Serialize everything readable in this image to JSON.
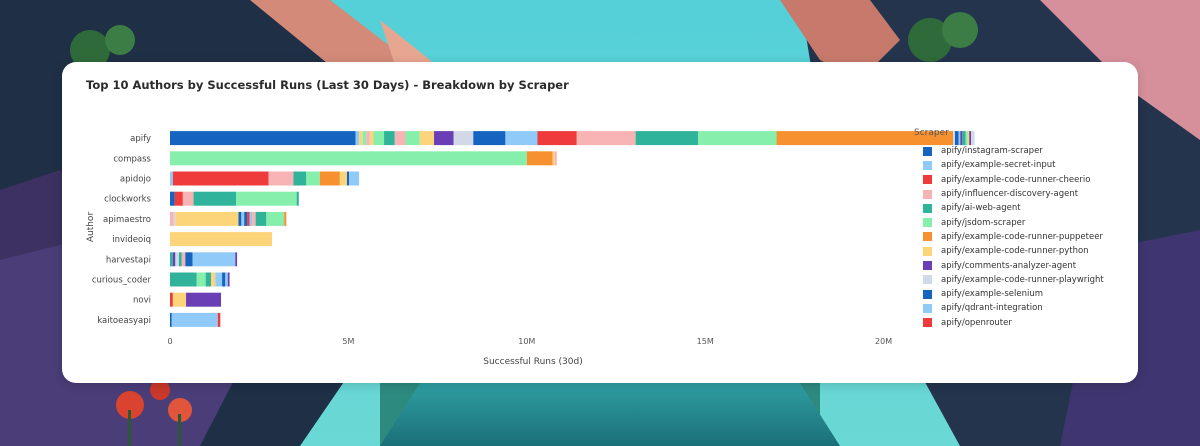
{
  "chart_data": {
    "type": "bar",
    "orientation": "horizontal",
    "stacked": true,
    "title": "Top 10 Authors by Successful Runs (Last 30 Days) - Breakdown by Scraper",
    "xlabel": "Successful Runs (30d)",
    "ylabel": "Author",
    "xlim": [
      0,
      25000000
    ],
    "x_ticks": [
      {
        "value": 0,
        "label": "0"
      },
      {
        "value": 5000000,
        "label": "5M"
      },
      {
        "value": 10000000,
        "label": "10M"
      },
      {
        "value": 15000000,
        "label": "15M"
      },
      {
        "value": 20000000,
        "label": "20M"
      }
    ],
    "grid": false,
    "legend_title": "Scraper",
    "legend_position": "right",
    "legend": [
      {
        "name": "apify/instagram-scraper",
        "color": "#1565c0"
      },
      {
        "name": "apify/example-secret-input",
        "color": "#90caf9"
      },
      {
        "name": "apify/example-code-runner-cheerio",
        "color": "#ef3b3b"
      },
      {
        "name": "apify/influencer-discovery-agent",
        "color": "#f8b4b4"
      },
      {
        "name": "apify/ai-web-agent",
        "color": "#2fb39a"
      },
      {
        "name": "apify/jsdom-scraper",
        "color": "#86efac"
      },
      {
        "name": "apify/example-code-runner-puppeteer",
        "color": "#f7902f"
      },
      {
        "name": "apify/example-code-runner-python",
        "color": "#fcd47a"
      },
      {
        "name": "apify/comments-analyzer-agent",
        "color": "#6a3fb5"
      },
      {
        "name": "apify/example-code-runner-playwright",
        "color": "#d3d8e8"
      },
      {
        "name": "apify/example-selenium",
        "color": "#1565c0"
      },
      {
        "name": "apify/qdrant-integration",
        "color": "#90caf9"
      },
      {
        "name": "apify/openrouter",
        "color": "#ef3b3b"
      }
    ],
    "categories": [
      "apify",
      "compass",
      "apidojo",
      "clockworks",
      "apimaestro",
      "invideoiq",
      "harvestapi",
      "curious_coder",
      "novi",
      "kaitoeasyapi"
    ],
    "bars": [
      {
        "author": "apify",
        "segments": [
          {
            "color": "#1565c0",
            "value": 5200000
          },
          {
            "color": "#90caf9",
            "value": 100000
          },
          {
            "color": "#fcd47a",
            "value": 100000
          },
          {
            "color": "#86efac",
            "value": 100000
          },
          {
            "color": "#f8b4b4",
            "value": 100000
          },
          {
            "color": "#fcd47a",
            "value": 100000
          },
          {
            "color": "#86efac",
            "value": 300000
          },
          {
            "color": "#2fb39a",
            "value": 300000
          },
          {
            "color": "#f8b4b4",
            "value": 300000
          },
          {
            "color": "#86efac",
            "value": 400000
          },
          {
            "color": "#fcd47a",
            "value": 400000
          },
          {
            "color": "#6a3fb5",
            "value": 550000
          },
          {
            "color": "#d3d8e8",
            "value": 550000
          },
          {
            "color": "#1565c0",
            "value": 900000
          },
          {
            "color": "#90caf9",
            "value": 900000
          },
          {
            "color": "#ef3b3b",
            "value": 1100000
          },
          {
            "color": "#f8b4b4",
            "value": 1650000
          },
          {
            "color": "#2fb39a",
            "value": 1750000
          },
          {
            "color": "#86efac",
            "value": 2200000
          },
          {
            "color": "#f7902f",
            "value": 4950000
          },
          {
            "color": "#d3d8e8",
            "value": 50000
          },
          {
            "color": "#1565c0",
            "value": 100000
          },
          {
            "color": "#90caf9",
            "value": 50000
          },
          {
            "color": "#6a3fb5",
            "value": 50000
          },
          {
            "color": "#2fb39a",
            "value": 100000
          },
          {
            "color": "#86efac",
            "value": 50000
          },
          {
            "color": "#fcd47a",
            "value": 50000
          },
          {
            "color": "#6a3fb5",
            "value": 50000
          },
          {
            "color": "#d3d8e8",
            "value": 100000
          }
        ]
      },
      {
        "author": "compass",
        "segments": [
          {
            "color": "#86efac",
            "value": 10000000
          },
          {
            "color": "#f7902f",
            "value": 720000
          },
          {
            "color": "#fcd47a",
            "value": 60000
          },
          {
            "color": "#f8b4b4",
            "value": 60000
          }
        ]
      },
      {
        "author": "apidojo",
        "segments": [
          {
            "color": "#90caf9",
            "value": 80000
          },
          {
            "color": "#ef3b3b",
            "value": 2680000
          },
          {
            "color": "#f8b4b4",
            "value": 700000
          },
          {
            "color": "#2fb39a",
            "value": 360000
          },
          {
            "color": "#86efac",
            "value": 380000
          },
          {
            "color": "#f7902f",
            "value": 560000
          },
          {
            "color": "#fcd47a",
            "value": 200000
          },
          {
            "color": "#1565c0",
            "value": 60000
          },
          {
            "color": "#90caf9",
            "value": 280000
          }
        ]
      },
      {
        "author": "clockworks",
        "segments": [
          {
            "color": "#1565c0",
            "value": 130000
          },
          {
            "color": "#ef3b3b",
            "value": 230000
          },
          {
            "color": "#f8b4b4",
            "value": 300000
          },
          {
            "color": "#2fb39a",
            "value": 1190000
          },
          {
            "color": "#86efac",
            "value": 1700000
          },
          {
            "color": "#2fb39a",
            "value": 60000
          }
        ]
      },
      {
        "author": "apimaestro",
        "segments": [
          {
            "color": "#f8b4b4",
            "value": 100000
          },
          {
            "color": "#d3d8e8",
            "value": 50000
          },
          {
            "color": "#fcd47a",
            "value": 1770000
          },
          {
            "color": "#1565c0",
            "value": 80000
          },
          {
            "color": "#90caf9",
            "value": 80000
          },
          {
            "color": "#1565c0",
            "value": 80000
          },
          {
            "color": "#ef3b3b",
            "value": 70000
          },
          {
            "color": "#90caf9",
            "value": 70000
          },
          {
            "color": "#f8b4b4",
            "value": 100000
          },
          {
            "color": "#2fb39a",
            "value": 300000
          },
          {
            "color": "#86efac",
            "value": 500000
          },
          {
            "color": "#f7902f",
            "value": 60000
          }
        ]
      },
      {
        "author": "invideoiq",
        "segments": [
          {
            "color": "#fcd47a",
            "value": 2860000
          }
        ]
      },
      {
        "author": "harvestapi",
        "segments": [
          {
            "color": "#2fb39a",
            "value": 80000
          },
          {
            "color": "#6a3fb5",
            "value": 70000
          },
          {
            "color": "#d3d8e8",
            "value": 100000
          },
          {
            "color": "#2fb39a",
            "value": 80000
          },
          {
            "color": "#f8b4b4",
            "value": 100000
          },
          {
            "color": "#1565c0",
            "value": 200000
          },
          {
            "color": "#90caf9",
            "value": 1200000
          },
          {
            "color": "#6a3fb5",
            "value": 50000
          }
        ]
      },
      {
        "author": "curious_coder",
        "segments": [
          {
            "color": "#2fb39a",
            "value": 750000
          },
          {
            "color": "#86efac",
            "value": 250000
          },
          {
            "color": "#2fb39a",
            "value": 150000
          },
          {
            "color": "#fcd47a",
            "value": 120000
          },
          {
            "color": "#90caf9",
            "value": 190000
          },
          {
            "color": "#1565c0",
            "value": 90000
          },
          {
            "color": "#90caf9",
            "value": 70000
          },
          {
            "color": "#6a3fb5",
            "value": 50000
          }
        ]
      },
      {
        "author": "novi",
        "segments": [
          {
            "color": "#ef3b3b",
            "value": 80000
          },
          {
            "color": "#fcd47a",
            "value": 370000
          },
          {
            "color": "#6a3fb5",
            "value": 980000
          }
        ]
      },
      {
        "author": "kaitoeasyapi",
        "segments": [
          {
            "color": "#1565c0",
            "value": 50000
          },
          {
            "color": "#90caf9",
            "value": 1290000
          },
          {
            "color": "#ef3b3b",
            "value": 70000
          }
        ]
      }
    ]
  }
}
